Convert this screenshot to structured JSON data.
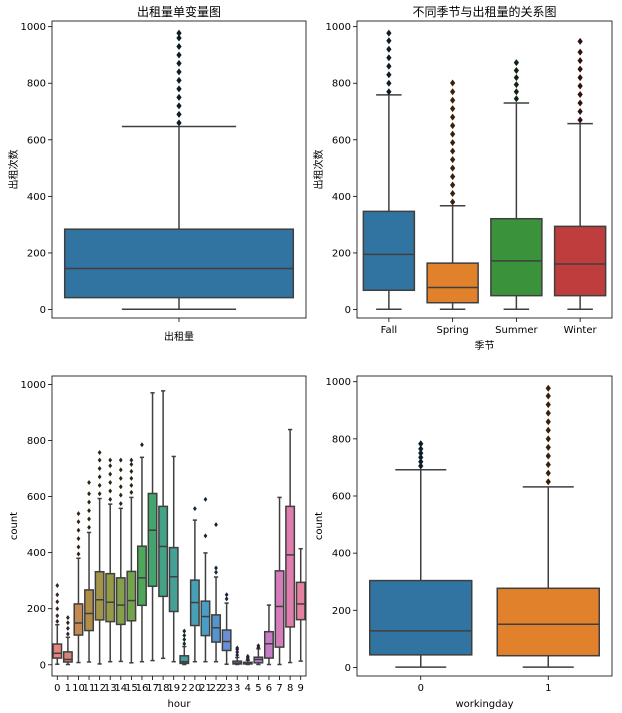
{
  "chart_data": [
    {
      "type": "box",
      "title": "出租量单变量图",
      "xlabel": "出租量",
      "ylabel": "出租次数",
      "ylim": [
        -30,
        1020
      ],
      "yticks": [
        0,
        200,
        400,
        600,
        800,
        1000
      ],
      "categories": [
        ""
      ],
      "boxes": [
        {
          "q1": 42,
          "median": 145,
          "q3": 284,
          "whislo": 1,
          "whishi": 647,
          "outliers": [
            660,
            690,
            720,
            750,
            780,
            810,
            840,
            870,
            900,
            930,
            960,
            977
          ],
          "color": "#3274a1"
        }
      ]
    },
    {
      "type": "box",
      "title": "不同季节与出租量的关系图",
      "xlabel": "季节",
      "ylabel": "出租次数",
      "ylim": [
        -30,
        1020
      ],
      "yticks": [
        0,
        200,
        400,
        600,
        800,
        1000
      ],
      "categories": [
        "Fall",
        "Spring",
        "Summer",
        "Winter"
      ],
      "boxes": [
        {
          "q1": 68,
          "median": 195,
          "q3": 347,
          "whislo": 1,
          "whishi": 759,
          "outliers": [
            770,
            800,
            830,
            860,
            890,
            920,
            950,
            977
          ],
          "color": "#3274a1"
        },
        {
          "q1": 24,
          "median": 78,
          "q3": 164,
          "whislo": 1,
          "whishi": 367,
          "outliers": [
            380,
            410,
            440,
            470,
            500,
            530,
            560,
            590,
            620,
            650,
            680,
            710,
            740,
            770,
            801
          ],
          "color": "#e1812c"
        },
        {
          "q1": 49,
          "median": 172,
          "q3": 321,
          "whislo": 1,
          "whishi": 730,
          "outliers": [
            745,
            770,
            795,
            820,
            845,
            873
          ],
          "color": "#3a923a"
        },
        {
          "q1": 49,
          "median": 161,
          "q3": 294,
          "whislo": 1,
          "whishi": 657,
          "outliers": [
            670,
            700,
            730,
            760,
            790,
            820,
            850,
            880,
            910,
            948
          ],
          "color": "#c03d3e"
        }
      ]
    },
    {
      "type": "box",
      "title": "",
      "xlabel": "hour",
      "ylabel": "count",
      "ylim": [
        -40,
        1030
      ],
      "yticks": [
        0,
        200,
        400,
        600,
        800,
        1000
      ],
      "categories": [
        "0",
        "1",
        "10",
        "11",
        "12",
        "13",
        "14",
        "15",
        "16",
        "17",
        "18",
        "19",
        "2",
        "20",
        "21",
        "22",
        "23",
        "3",
        "4",
        "5",
        "6",
        "7",
        "8",
        "9"
      ],
      "boxes": [
        {
          "q1": 24,
          "median": 41,
          "q3": 74,
          "whislo": 2,
          "whishi": 143,
          "outliers": [
            155,
            175,
            200,
            225,
            250,
            283
          ],
          "color": "#e8837f"
        },
        {
          "q1": 10,
          "median": 19,
          "q3": 46,
          "whislo": 1,
          "whishi": 98,
          "outliers": [
            110,
            130,
            150,
            168
          ],
          "color": "#d7847a"
        },
        {
          "q1": 106,
          "median": 149,
          "q3": 217,
          "whislo": 8,
          "whishi": 380,
          "outliers": [
            395,
            420,
            450,
            480,
            510,
            539
          ],
          "color": "#c48a52"
        },
        {
          "q1": 122,
          "median": 183,
          "q3": 267,
          "whislo": 10,
          "whishi": 472,
          "outliers": [
            490,
            520,
            550,
            580,
            610,
            650
          ],
          "color": "#b08e4a"
        },
        {
          "q1": 160,
          "median": 232,
          "q3": 332,
          "whislo": 3,
          "whishi": 593,
          "outliers": [
            610,
            640,
            670,
            700,
            730,
            757
          ],
          "color": "#a29448"
        },
        {
          "q1": 154,
          "median": 223,
          "q3": 325,
          "whislo": 11,
          "whishi": 573,
          "outliers": [
            590,
            620,
            650,
            680,
            710,
            730
          ],
          "color": "#959a46"
        },
        {
          "q1": 144,
          "median": 213,
          "q3": 310,
          "whislo": 12,
          "whishi": 558,
          "outliers": [
            575,
            605,
            635,
            665,
            695,
            730
          ],
          "color": "#859f4a"
        },
        {
          "q1": 157,
          "median": 229,
          "q3": 333,
          "whislo": 7,
          "whishi": 597,
          "outliers": [
            615,
            640,
            665,
            690,
            715,
            730
          ],
          "color": "#73a44c"
        },
        {
          "q1": 212,
          "median": 310,
          "q3": 423,
          "whislo": 11,
          "whishi": 740,
          "outliers": [
            785
          ],
          "color": "#4fa85a"
        },
        {
          "q1": 280,
          "median": 480,
          "q3": 611,
          "whislo": 15,
          "whishi": 970,
          "outliers": [],
          "color": "#43a46d"
        },
        {
          "q1": 244,
          "median": 422,
          "q3": 565,
          "whislo": 23,
          "whishi": 977,
          "outliers": [],
          "color": "#44a386"
        },
        {
          "q1": 190,
          "median": 314,
          "q3": 418,
          "whislo": 11,
          "whishi": 743,
          "outliers": [],
          "color": "#45a196"
        },
        {
          "q1": 5,
          "median": 11,
          "q3": 32,
          "whislo": 1,
          "whishi": 65,
          "outliers": [
            75,
            90,
            105,
            120
          ],
          "color": "#469fa5"
        },
        {
          "q1": 140,
          "median": 222,
          "q3": 302,
          "whislo": 11,
          "whishi": 516,
          "outliers": [
            557
          ],
          "color": "#48a0b7"
        },
        {
          "q1": 104,
          "median": 172,
          "q3": 227,
          "whislo": 11,
          "whishi": 399,
          "outliers": [
            460,
            590
          ],
          "color": "#4a9dc4"
        },
        {
          "q1": 81,
          "median": 132,
          "q3": 178,
          "whislo": 11,
          "whishi": 313,
          "outliers": [
            330,
            345,
            500
          ],
          "color": "#5595cc"
        },
        {
          "q1": 51,
          "median": 83,
          "q3": 124,
          "whislo": 2,
          "whishi": 220,
          "outliers": [
            235,
            250
          ],
          "color": "#6a8ed3"
        },
        {
          "q1": 3,
          "median": 6,
          "q3": 13,
          "whislo": 1,
          "whishi": 26,
          "outliers": [
            35,
            45,
            55,
            60
          ],
          "color": "#8a86d6"
        },
        {
          "q1": 3,
          "median": 6,
          "q3": 9,
          "whislo": 1,
          "whishi": 16,
          "outliers": [
            20,
            25,
            30
          ],
          "color": "#a283d3"
        },
        {
          "q1": 7,
          "median": 19,
          "q3": 27,
          "whislo": 1,
          "whishi": 57,
          "outliers": [
            62,
            68
          ],
          "color": "#b87fcd"
        },
        {
          "q1": 24,
          "median": 75,
          "q3": 118,
          "whislo": 1,
          "whishi": 213,
          "outliers": [],
          "color": "#c67dc6"
        },
        {
          "q1": 63,
          "median": 208,
          "q3": 335,
          "whislo": 1,
          "whishi": 597,
          "outliers": [],
          "color": "#d57cba"
        },
        {
          "q1": 135,
          "median": 392,
          "q3": 565,
          "whislo": 8,
          "whishi": 839,
          "outliers": [],
          "color": "#e07dad"
        },
        {
          "q1": 161,
          "median": 217,
          "q3": 294,
          "whislo": 13,
          "whishi": 414,
          "outliers": [],
          "color": "#e680a0"
        }
      ]
    },
    {
      "type": "box",
      "title": "",
      "xlabel": "workingday",
      "ylabel": "count",
      "ylim": [
        -30,
        1020
      ],
      "yticks": [
        0,
        200,
        400,
        600,
        800,
        1000
      ],
      "categories": [
        "0",
        "1"
      ],
      "boxes": [
        {
          "q1": 44,
          "median": 128,
          "q3": 304,
          "whislo": 1,
          "whishi": 692,
          "outliers": [
            705,
            720,
            735,
            750,
            765,
            783
          ],
          "color": "#3274a1"
        },
        {
          "q1": 41,
          "median": 151,
          "q3": 277,
          "whislo": 1,
          "whishi": 632,
          "outliers": [
            650,
            680,
            710,
            740,
            770,
            800,
            830,
            860,
            890,
            920,
            950,
            977
          ],
          "color": "#e1812c"
        }
      ]
    }
  ]
}
